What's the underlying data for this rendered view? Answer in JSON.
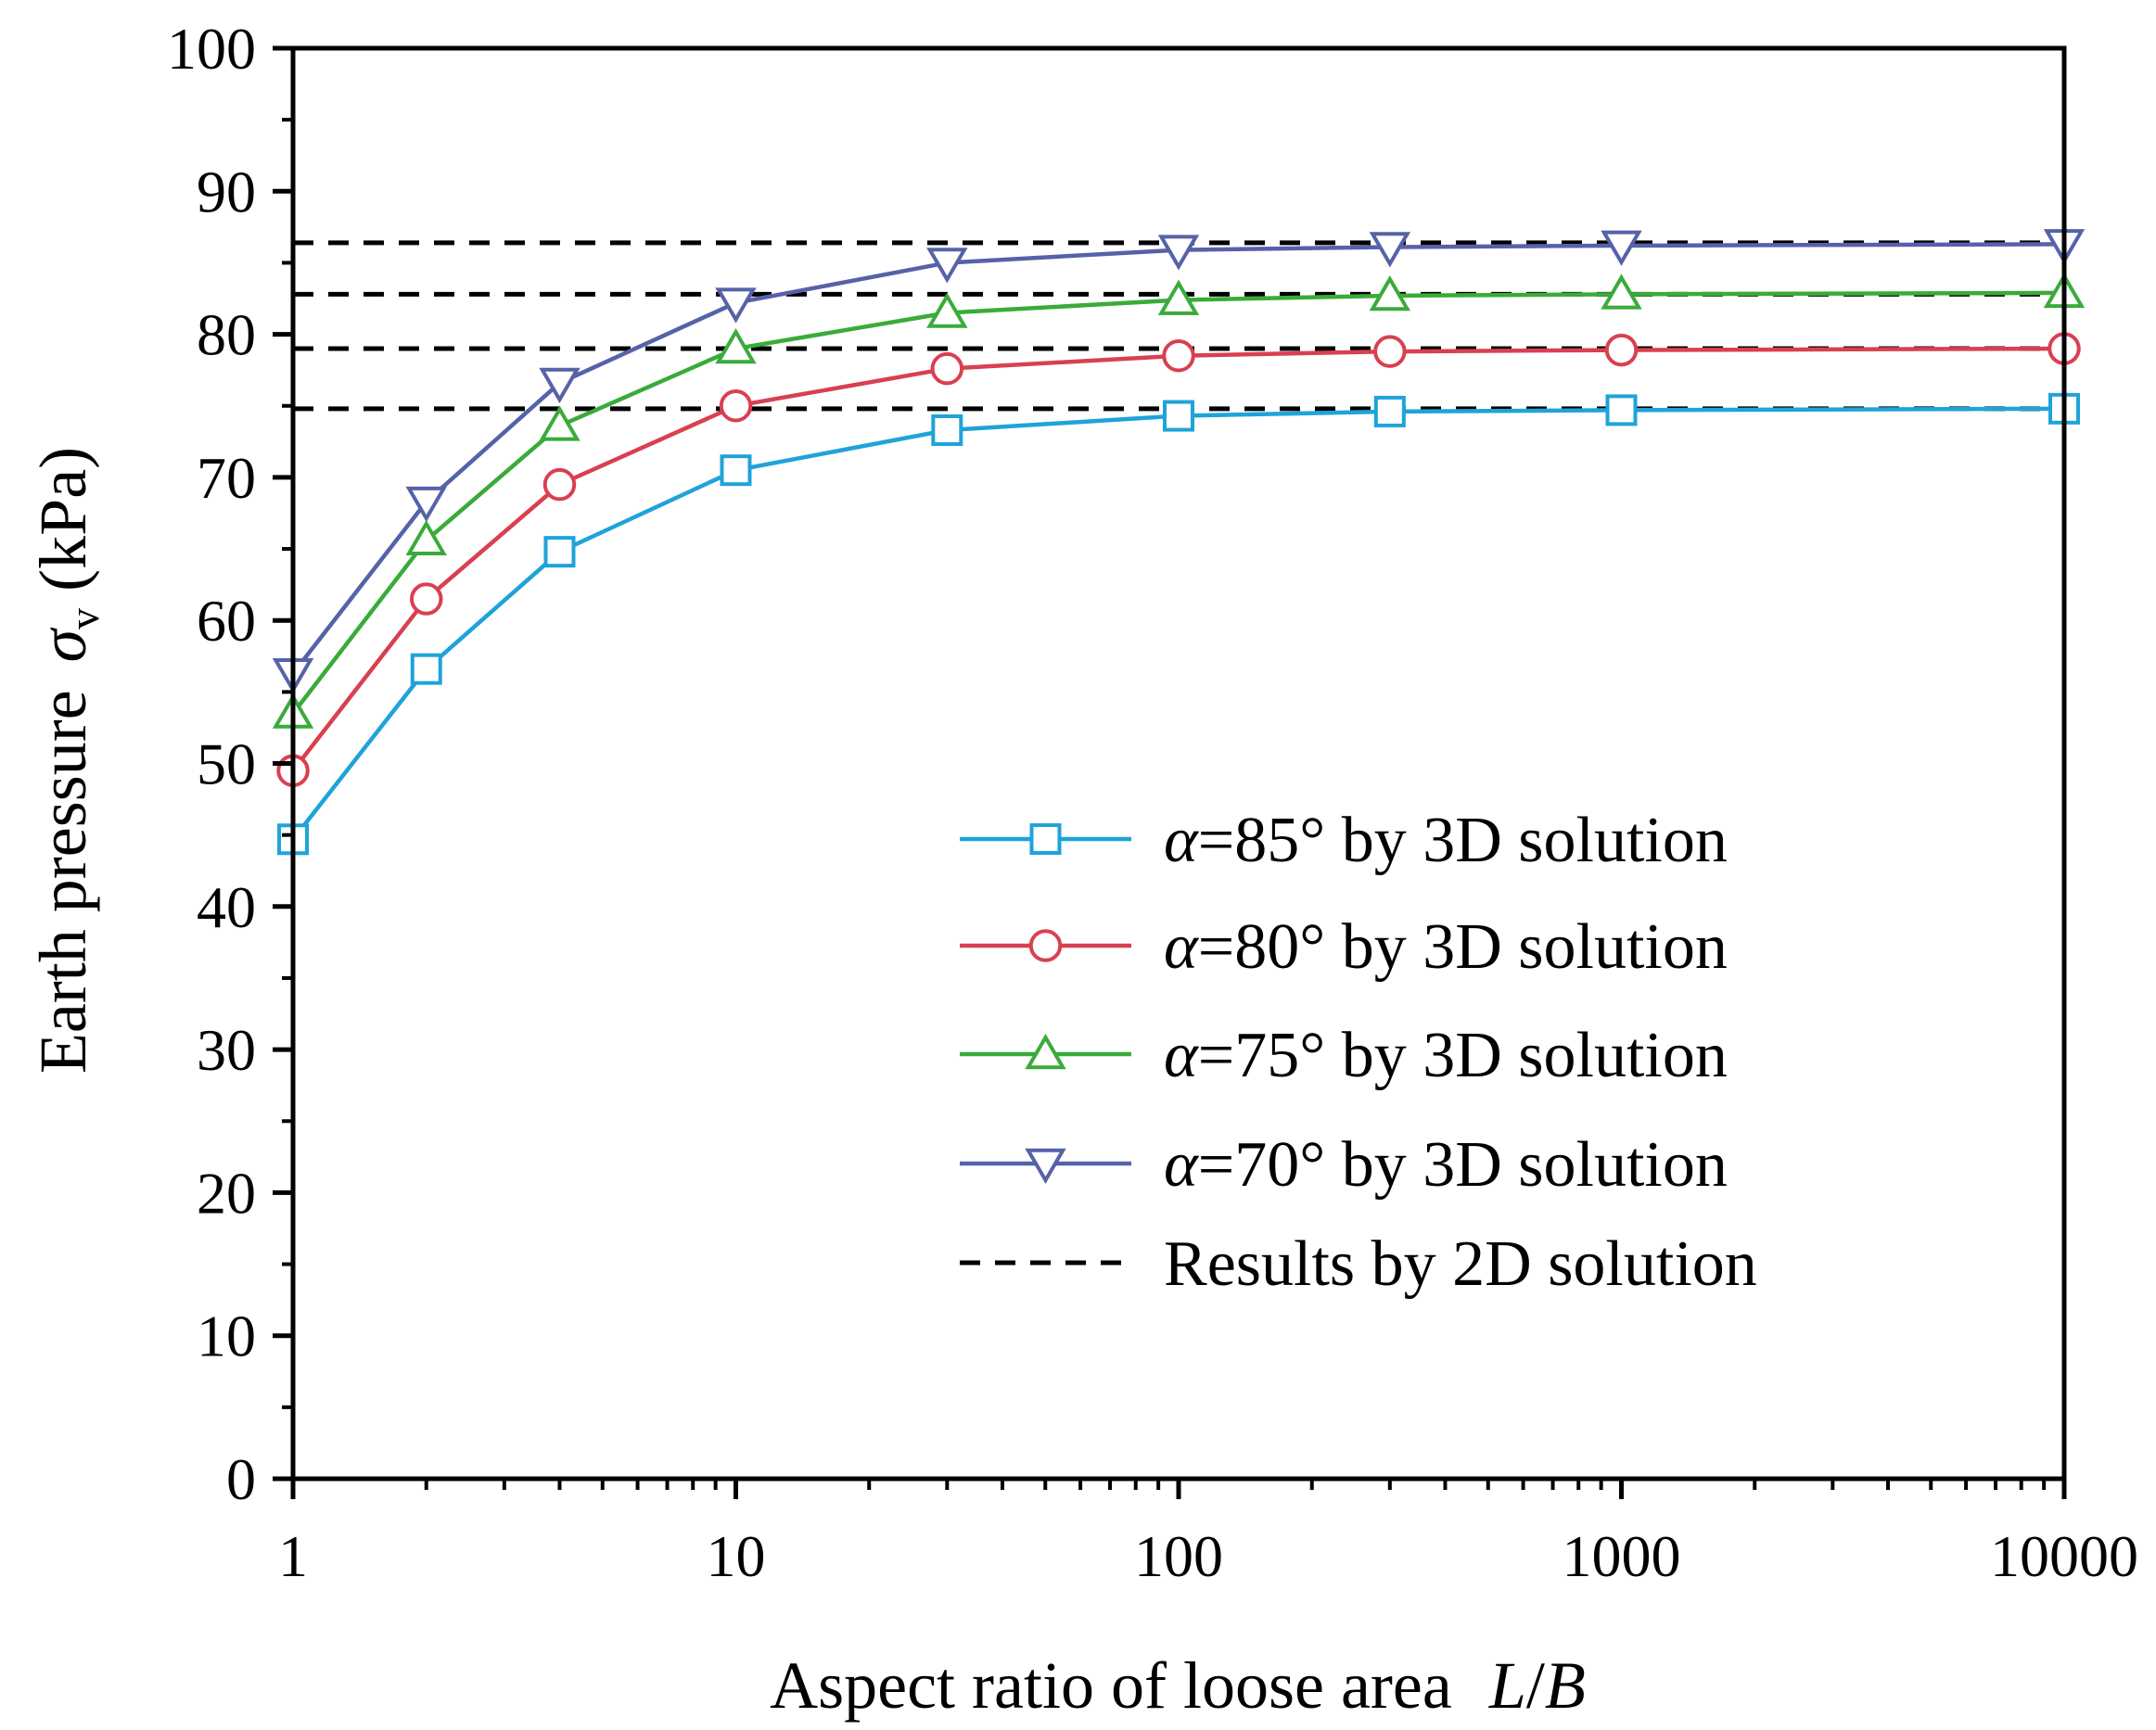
{
  "chart_data": {
    "type": "line",
    "x_scale": "log",
    "x": [
      1,
      2,
      4,
      10,
      30,
      100,
      300,
      1000,
      10000
    ],
    "xlim": [
      1,
      10000
    ],
    "ylim": [
      0,
      100
    ],
    "xticks": [
      "1",
      "10",
      "100",
      "1000",
      "10000"
    ],
    "yticks": [
      "0",
      "10",
      "20",
      "30",
      "40",
      "50",
      "60",
      "70",
      "80",
      "90",
      "100"
    ],
    "xlabel": {
      "text": "Aspect ratio of loose area",
      "var_l": "L",
      "slash": "/",
      "var_b": "B"
    },
    "ylabel": {
      "text": "Earth pressure",
      "sym": "σ",
      "sub": "v",
      "unit": "(kPa)"
    },
    "series": [
      {
        "name": "α=85° by 3D solution",
        "alpha_sym": "α",
        "label_rest": "=85° by 3D solution",
        "color": "#1fa3d9",
        "marker": "square",
        "values": [
          44.7,
          56.6,
          64.8,
          70.5,
          73.3,
          74.3,
          74.6,
          74.7,
          74.8
        ]
      },
      {
        "name": "α=80° by 3D solution",
        "alpha_sym": "α",
        "label_rest": "=80° by 3D solution",
        "color": "#d9404f",
        "marker": "circle",
        "values": [
          49.5,
          61.5,
          69.5,
          75.0,
          77.6,
          78.5,
          78.8,
          78.9,
          79.0
        ]
      },
      {
        "name": "α=75° by 3D solution",
        "alpha_sym": "α",
        "label_rest": "=75° by 3D solution",
        "color": "#3aab3a",
        "marker": "triangle-up",
        "values": [
          53.5,
          65.6,
          73.6,
          79.0,
          81.5,
          82.4,
          82.7,
          82.8,
          82.9
        ]
      },
      {
        "name": "α=70° by 3D solution",
        "alpha_sym": "α",
        "label_rest": "=70° by 3D solution",
        "color": "#5662a8",
        "marker": "triangle-down",
        "values": [
          56.3,
          68.3,
          76.6,
          82.2,
          85.0,
          85.9,
          86.1,
          86.2,
          86.3
        ]
      }
    ],
    "reference_lines": {
      "name": "Results by 2D solution",
      "color": "#000000",
      "style": "dashed",
      "values": [
        74.8,
        79.0,
        82.8,
        86.4
      ]
    },
    "legend_position": "lower-right"
  }
}
